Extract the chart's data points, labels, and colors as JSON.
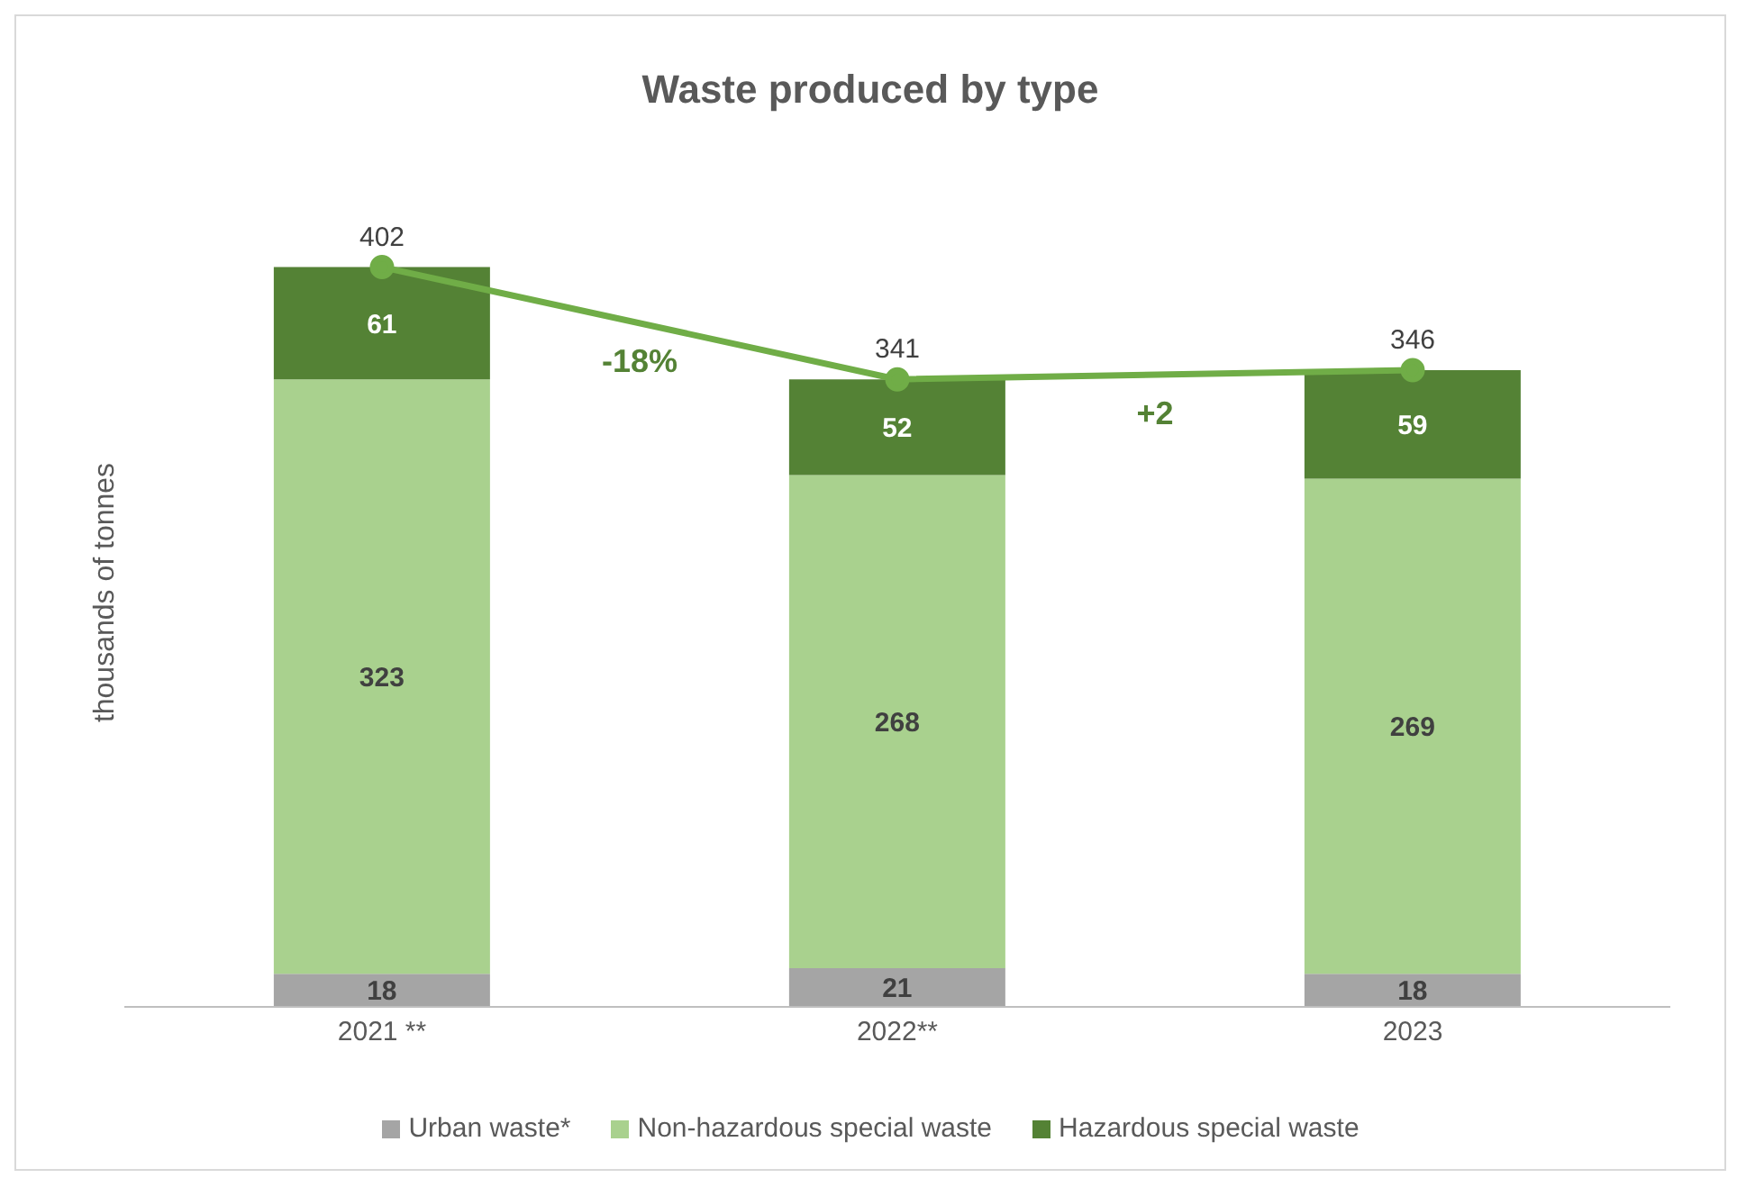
{
  "chart_data": {
    "type": "bar",
    "title": "Waste produced by type",
    "ylabel": "thousands of tonnes",
    "categories": [
      "2021 **",
      "2022**",
      "2023"
    ],
    "stacked": true,
    "data_labels": true,
    "legend": "bottom",
    "annotations": [
      "-18%",
      "+2"
    ],
    "series": [
      {
        "name": "Urban waste*",
        "color": "#a5a5a5",
        "values": [
          18,
          21,
          18
        ]
      },
      {
        "name": "Non-hazardous special waste",
        "color": "#a9d18e",
        "values": [
          323,
          268,
          269
        ]
      },
      {
        "name": "Hazardous special waste",
        "color": "#548235",
        "values": [
          61,
          52,
          59
        ]
      },
      {
        "type": "line",
        "color": "#70ad47",
        "marker": "circle",
        "values": [
          402,
          341,
          346
        ]
      }
    ]
  }
}
